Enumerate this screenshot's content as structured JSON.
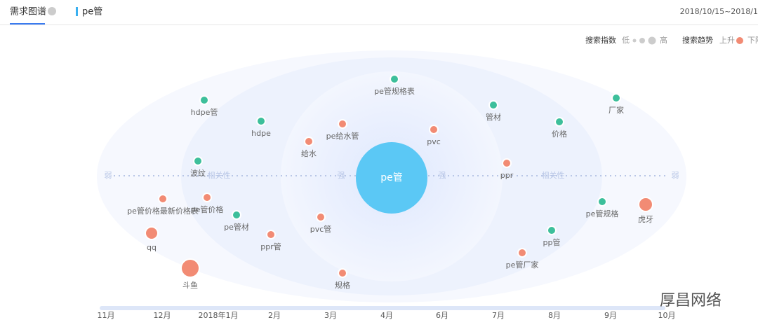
{
  "header": {
    "tab": "需求图谱",
    "keyword": "pe管",
    "date_range": "2018/10/15~2018/1"
  },
  "legend": {
    "index_label": "搜索指数",
    "low": "低",
    "high": "高",
    "trend_label": "搜索趋势",
    "up": "上升",
    "down": "下降",
    "up_color": "#f28b74",
    "down_color": "#3dbf9b"
  },
  "axis": {
    "left_weak": "弱",
    "left_relevance": "相关性",
    "left_strong": "强",
    "right_strong": "强",
    "right_relevance": "相关性",
    "right_weak": "弱"
  },
  "center": {
    "label": "pe管",
    "color": "#5bc8f5"
  },
  "nodes": [
    {
      "label": "pe管规格表",
      "trend": "down"
    },
    {
      "label": "hdpe管",
      "trend": "down"
    },
    {
      "label": "hdpe",
      "trend": "down"
    },
    {
      "label": "pe给水管",
      "trend": "up"
    },
    {
      "label": "给水",
      "trend": "up"
    },
    {
      "label": "pvc",
      "trend": "up"
    },
    {
      "label": "管材",
      "trend": "down"
    },
    {
      "label": "价格",
      "trend": "down"
    },
    {
      "label": "厂家",
      "trend": "down"
    },
    {
      "label": "波纹",
      "trend": "down"
    },
    {
      "label": "ppr",
      "trend": "up"
    },
    {
      "label": "pe管价格最新价格表",
      "trend": "up"
    },
    {
      "label": "pe管价格",
      "trend": "up"
    },
    {
      "label": "pe管材",
      "trend": "down"
    },
    {
      "label": "pvc管",
      "trend": "up"
    },
    {
      "label": "ppr管",
      "trend": "up"
    },
    {
      "label": "qq",
      "trend": "up"
    },
    {
      "label": "斗鱼",
      "trend": "up"
    },
    {
      "label": "规格",
      "trend": "up"
    },
    {
      "label": "pe管规格",
      "trend": "down"
    },
    {
      "label": "虎牙",
      "trend": "up"
    },
    {
      "label": "pp管",
      "trend": "down"
    },
    {
      "label": "pe管厂家",
      "trend": "up"
    }
  ],
  "timeline": [
    "11月",
    "12月",
    "2018年1月",
    "2月",
    "3月",
    "4月",
    "6月",
    "7月",
    "8月",
    "9月",
    "10月"
  ],
  "watermark": "厚昌网络"
}
